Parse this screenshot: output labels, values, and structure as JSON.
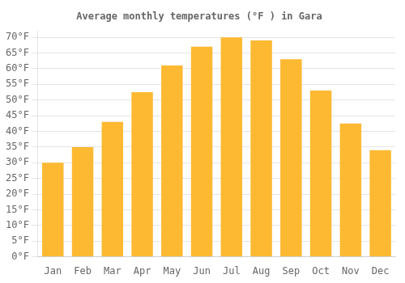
{
  "chart_data": {
    "type": "bar",
    "title": "Average monthly temperatures (°F ) in Gara",
    "categories": [
      "Jan",
      "Feb",
      "Mar",
      "Apr",
      "May",
      "Jun",
      "Jul",
      "Aug",
      "Sep",
      "Oct",
      "Nov",
      "Dec"
    ],
    "values": [
      30,
      35,
      43,
      52.5,
      61,
      67,
      70,
      69,
      63,
      53,
      42.5,
      34
    ],
    "color": "#FDB932",
    "ylim": [
      0,
      72
    ],
    "yticks": [
      {
        "value": 0,
        "label": "0°F"
      },
      {
        "value": 5,
        "label": "5°F"
      },
      {
        "value": 10,
        "label": "10°F"
      },
      {
        "value": 15,
        "label": "15°F"
      },
      {
        "value": 20,
        "label": "20°F"
      },
      {
        "value": 25,
        "label": "25°F"
      },
      {
        "value": 30,
        "label": "30°F"
      },
      {
        "value": 35,
        "label": "35°F"
      },
      {
        "value": 40,
        "label": "40°F"
      },
      {
        "value": 45,
        "label": "45°F"
      },
      {
        "value": 50,
        "label": "50°F"
      },
      {
        "value": 55,
        "label": "55°F"
      },
      {
        "value": 60,
        "label": "60°F"
      },
      {
        "value": 65,
        "label": "65°F"
      },
      {
        "value": 70,
        "label": "70°F"
      }
    ],
    "grid": true
  }
}
